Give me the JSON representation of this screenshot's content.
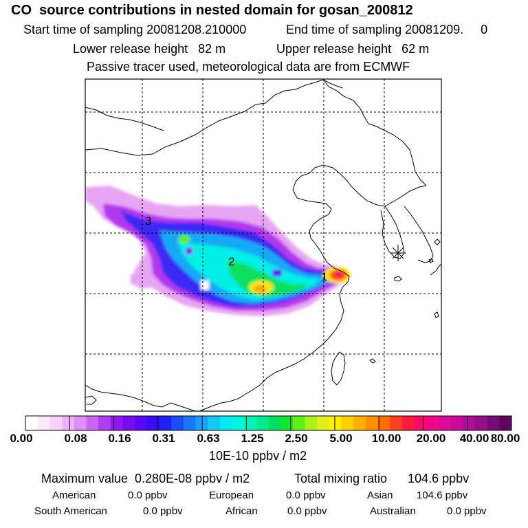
{
  "header": {
    "title": "CO  source contributions in nested domain for gosan_200812",
    "start_time": "Start time of sampling 20081208.210000",
    "end_time": "End time of sampling 20081209.     0",
    "lower_height": "Lower release height   82 m",
    "upper_height": "Upper release height   62 m",
    "tracer_note": "Passive tracer used, meteorological data are from ECMWF"
  },
  "map": {
    "source_labels": [
      "1",
      "2",
      "3"
    ],
    "receptor": "gosan-receptor-marker"
  },
  "colorbar": {
    "ticks": [
      "0.00",
      "0.08",
      "0.16",
      "0.31",
      "0.63",
      "1.25",
      "2.50",
      "5.00",
      "10.00",
      "20.00",
      "40.00",
      "80.00"
    ],
    "unit": "10E-10 ppbv / m2",
    "colors": [
      "#ffffff",
      "#fbe8fb",
      "#f6d0f6",
      "#efb0f6",
      "#e08ef4",
      "#cc66f2",
      "#b03cf0",
      "#9417ee",
      "#7a0af0",
      "#5808f4",
      "#3a0cf6",
      "#2020f6",
      "#1a4cf6",
      "#1a78f6",
      "#1aa0f6",
      "#14c8f6",
      "#00e8f4",
      "#00f6dc",
      "#00f4b8",
      "#00ec90",
      "#00e060",
      "#10e82c",
      "#60f018",
      "#a8f41c",
      "#dcf21a",
      "#fff000",
      "#ffd000",
      "#ffb000",
      "#ff9000",
      "#ff6c00",
      "#ff4020",
      "#ff1a40",
      "#ff0a68",
      "#f00888",
      "#dc0a98",
      "#c80ca0",
      "#b00e98",
      "#960e88",
      "#7a0a74",
      "#5e0660"
    ]
  },
  "summary": {
    "max_value": "Maximum value  0.280E-08 ppbv / m2",
    "total_mixing": "Total mixing ratio      104.6 ppbv",
    "regions": [
      {
        "name": "American",
        "value": "0.0 ppbv"
      },
      {
        "name": "European",
        "value": "0.0 ppbv"
      },
      {
        "name": "Asian",
        "value": "104.6 ppbv"
      },
      {
        "name": "South American",
        "value": "0.0 ppbv"
      },
      {
        "name": "African",
        "value": "0.0 ppbv"
      },
      {
        "name": "Australian",
        "value": "0.0 ppbv"
      }
    ]
  }
}
